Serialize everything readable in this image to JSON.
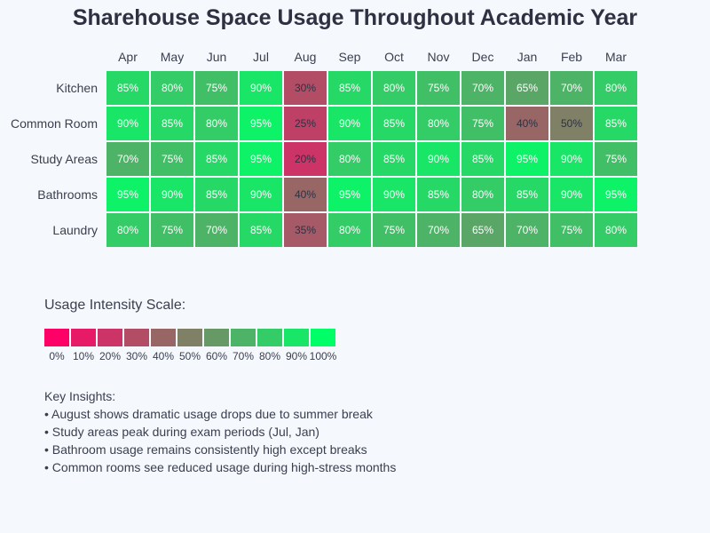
{
  "chart_data": {
    "type": "heatmap",
    "title": "Sharehouse Space Usage Throughout Academic Year",
    "columns": [
      "Apr",
      "May",
      "Jun",
      "Jul",
      "Aug",
      "Sep",
      "Oct",
      "Nov",
      "Dec",
      "Jan",
      "Feb",
      "Mar"
    ],
    "rows": [
      "Kitchen",
      "Common Room",
      "Study Areas",
      "Bathrooms",
      "Laundry"
    ],
    "values": [
      [
        85,
        80,
        75,
        90,
        30,
        85,
        80,
        75,
        70,
        65,
        70,
        80
      ],
      [
        90,
        85,
        80,
        95,
        25,
        90,
        85,
        80,
        75,
        40,
        50,
        85
      ],
      [
        70,
        75,
        85,
        95,
        20,
        80,
        85,
        90,
        85,
        95,
        90,
        75
      ],
      [
        95,
        90,
        85,
        90,
        40,
        95,
        90,
        85,
        80,
        85,
        90,
        95
      ],
      [
        80,
        75,
        70,
        85,
        35,
        80,
        75,
        70,
        65,
        70,
        75,
        80
      ]
    ],
    "value_suffix": "%",
    "color_scale": {
      "low": "#ff0066",
      "high": "#00ff66"
    },
    "legend": {
      "title": "Usage Intensity Scale:",
      "stops": [
        0,
        10,
        20,
        30,
        40,
        50,
        60,
        70,
        80,
        90,
        100
      ]
    }
  },
  "insights": {
    "heading": "Key Insights:",
    "items": [
      "• August shows dramatic usage drops due to summer break",
      "• Study areas peak during exam periods (Jul, Jan)",
      "• Bathroom usage remains consistently high except breaks",
      "• Common rooms see reduced usage during high-stress months"
    ]
  }
}
